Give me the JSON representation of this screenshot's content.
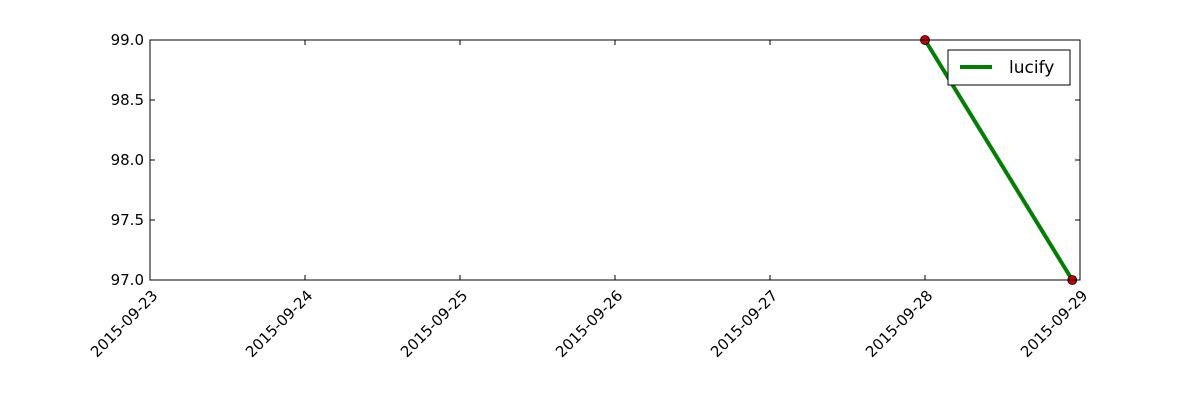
{
  "chart_data": {
    "type": "line",
    "title": "",
    "xlabel": "",
    "ylabel": "",
    "x_tick_labels": [
      "2015-09-23",
      "2015-09-24",
      "2015-09-25",
      "2015-09-26",
      "2015-09-27",
      "2015-09-28",
      "2015-09-29"
    ],
    "y_tick_labels": [
      "97.0",
      "97.5",
      "98.0",
      "98.5",
      "99.0"
    ],
    "xlim": [
      "2015-09-23",
      "2015-09-29"
    ],
    "ylim": [
      97.0,
      99.0
    ],
    "grid": false,
    "legend_position": "top-right",
    "series": [
      {
        "name": "lucify",
        "color": "#008000",
        "marker_color": "#cc0000",
        "points": [
          {
            "x": "2015-09-28",
            "y": 99.0
          },
          {
            "x": "2015-09-28 22:48",
            "y": 97.0
          }
        ]
      }
    ]
  }
}
